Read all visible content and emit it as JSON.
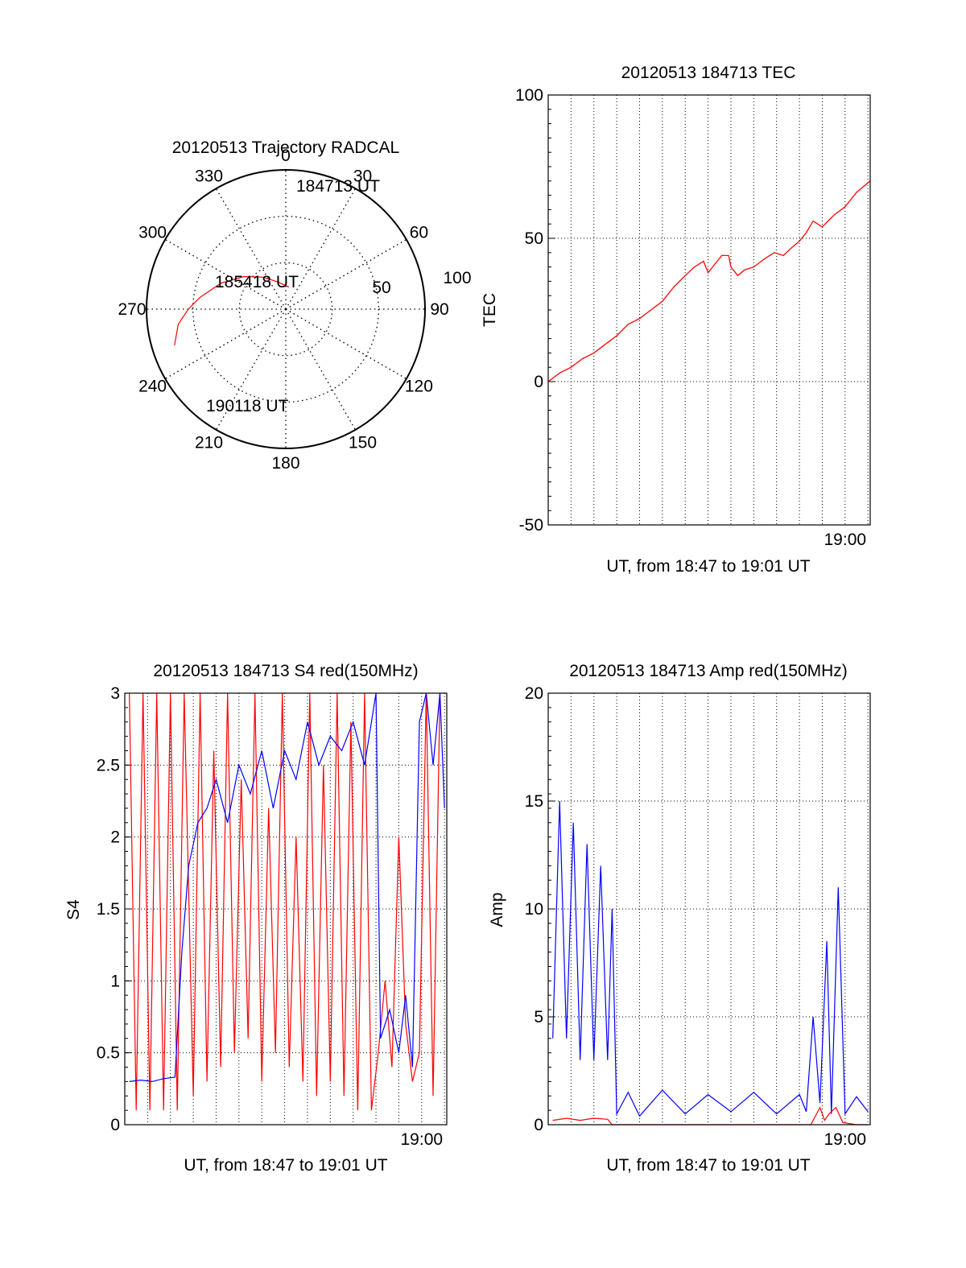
{
  "chart_data": [
    {
      "type": "polar",
      "title": "20120513 Trajectory RADCAL",
      "angle_labels": [
        "0",
        "30",
        "60",
        "90",
        "120",
        "150",
        "180",
        "210",
        "240",
        "270",
        "300",
        "330"
      ],
      "radial_labels": [
        "50",
        "100"
      ],
      "rlim": [
        0,
        100
      ],
      "grid": true,
      "annotations": [
        "184713 UT",
        "185418 UT",
        "190118 UT"
      ],
      "colors": {
        "track": "#ff0000"
      },
      "series": [
        {
          "azimuth": [
            8,
            345,
            325,
            308,
            292,
            278,
            270,
            262,
            252
          ],
          "elevation_offset": [
            16,
            20,
            28,
            38,
            50,
            62,
            70,
            78,
            84
          ]
        }
      ]
    },
    {
      "type": "line",
      "title": "20120513 184713 TEC",
      "xlabel": "UT, from 18:47 to 19:01 UT",
      "ylabel": "TEC",
      "xlim": [
        0,
        14.1
      ],
      "ylim": [
        -50,
        100
      ],
      "yticks": [
        "-50",
        "0",
        "50",
        "100"
      ],
      "xticks": [
        {
          "value": 13,
          "label": "19:00"
        }
      ],
      "grid": true,
      "colors": {
        "series": "#ff0000"
      },
      "series": [
        {
          "x": [
            0,
            0.5,
            1.0,
            1.5,
            2.0,
            2.5,
            3.0,
            3.5,
            4.0,
            4.5,
            5.0,
            5.5,
            6.0,
            6.4,
            6.8,
            7.0,
            7.3,
            7.6,
            7.9,
            8.0,
            8.3,
            8.6,
            9.0,
            9.5,
            9.9,
            10.3,
            10.7,
            11.0,
            11.3,
            11.6,
            12.0,
            12.5,
            13.0,
            13.5,
            14.1
          ],
          "y": [
            0,
            3,
            5,
            8,
            10,
            13,
            16,
            20,
            22,
            25,
            28,
            33,
            37,
            40,
            42,
            38,
            41,
            44,
            44,
            40,
            37,
            39,
            40,
            43,
            45,
            44,
            47,
            49,
            52,
            56,
            54,
            58,
            61,
            66,
            70
          ]
        }
      ]
    },
    {
      "type": "line",
      "title": "20120513 184713 S4 red(150MHz)",
      "xlabel": "UT, from 18:47 to 19:01 UT",
      "ylabel": "S4",
      "xlim": [
        0,
        14.1
      ],
      "ylim": [
        0,
        3
      ],
      "yticks": [
        "0",
        "0.5",
        "1",
        "1.5",
        "2",
        "2.5",
        "3"
      ],
      "xticks": [
        {
          "value": 13,
          "label": "19:00"
        }
      ],
      "grid": true,
      "colors": {
        "red": "#ff0000",
        "blue": "#0000ff"
      },
      "series": [
        {
          "color": "red",
          "x": [
            0.2,
            0.5,
            0.8,
            1.1,
            1.4,
            1.7,
            2.0,
            2.3,
            2.6,
            3.0,
            3.3,
            3.6,
            3.9,
            4.2,
            4.5,
            4.8,
            5.1,
            5.4,
            5.7,
            6.0,
            6.3,
            6.6,
            6.9,
            7.2,
            7.5,
            7.8,
            8.1,
            8.4,
            8.7,
            9.0,
            9.3,
            9.6,
            9.9,
            10.2,
            10.5,
            10.8,
            11.1,
            11.4,
            11.7,
            12.0,
            12.3,
            12.6,
            12.9,
            13.2,
            13.5,
            13.8
          ],
          "y": [
            3,
            0.1,
            3,
            0.1,
            3,
            0.1,
            3,
            0.1,
            3,
            0.2,
            3,
            0.3,
            2.6,
            0.4,
            3,
            0.5,
            2.4,
            0.6,
            3,
            0.3,
            2.2,
            0.5,
            3,
            0.4,
            2.0,
            0.3,
            3,
            0.2,
            2.5,
            0.3,
            3,
            0.2,
            2.8,
            0.1,
            3,
            0.1,
            0.5,
            1.0,
            0.4,
            2.0,
            0.7,
            0.3,
            0.5,
            3,
            0.2,
            3
          ]
        },
        {
          "color": "blue",
          "x": [
            0.2,
            0.7,
            1.2,
            1.7,
            2.2,
            2.5,
            2.8,
            3.2,
            3.6,
            4.0,
            4.5,
            5.0,
            5.5,
            6.0,
            6.5,
            7.0,
            7.5,
            8.0,
            8.5,
            9.0,
            9.5,
            10.0,
            10.5,
            11.0,
            11.2,
            11.6,
            12.0,
            12.3,
            12.6,
            12.9,
            13.2,
            13.5,
            13.8,
            14.0
          ],
          "y": [
            0.3,
            0.31,
            0.3,
            0.32,
            0.33,
            1.2,
            1.8,
            2.1,
            2.2,
            2.4,
            2.1,
            2.5,
            2.3,
            2.6,
            2.2,
            2.6,
            2.4,
            2.8,
            2.5,
            2.7,
            2.6,
            2.8,
            2.5,
            3,
            0.6,
            0.8,
            0.5,
            0.9,
            0.4,
            2.8,
            3,
            2.5,
            3,
            2.2
          ]
        }
      ]
    },
    {
      "type": "line",
      "title": "20120513 184713 Amp red(150MHz)",
      "xlabel": "UT, from 18:47 to 19:01 UT",
      "ylabel": "Amp",
      "xlim": [
        0,
        14.1
      ],
      "ylim": [
        0,
        20
      ],
      "yticks": [
        "0",
        "5",
        "10",
        "15",
        "20"
      ],
      "xticks": [
        {
          "value": 13,
          "label": "19:00"
        }
      ],
      "grid": true,
      "colors": {
        "red": "#ff0000",
        "blue": "#0000ff"
      },
      "series": [
        {
          "color": "blue",
          "x": [
            0.2,
            0.5,
            0.8,
            1.1,
            1.4,
            1.7,
            2.0,
            2.3,
            2.6,
            2.8,
            3.0,
            3.5,
            4.0,
            5.0,
            6.0,
            7.0,
            8.0,
            9.0,
            10.0,
            11.0,
            11.3,
            11.6,
            11.9,
            12.2,
            12.4,
            12.7,
            13.0,
            13.5,
            14.0
          ],
          "y": [
            4,
            15,
            4,
            14,
            3,
            13,
            3,
            12,
            3,
            10,
            0.5,
            1.5,
            0.4,
            1.6,
            0.5,
            1.4,
            0.6,
            1.5,
            0.5,
            1.4,
            0.6,
            5,
            1.0,
            8.5,
            0.5,
            11,
            0.5,
            1.3,
            0.6
          ]
        },
        {
          "color": "red",
          "x": [
            0.2,
            0.8,
            1.4,
            2.0,
            2.6,
            2.8,
            3.5,
            6.0,
            9.0,
            11.5,
            11.9,
            12.1,
            12.3,
            12.6,
            12.9,
            13.5,
            14.0
          ],
          "y": [
            0.2,
            0.3,
            0.2,
            0.3,
            0.25,
            0,
            0,
            0,
            0,
            0,
            0.8,
            0.2,
            0.5,
            0.8,
            0.1,
            0,
            0
          ]
        }
      ]
    }
  ]
}
